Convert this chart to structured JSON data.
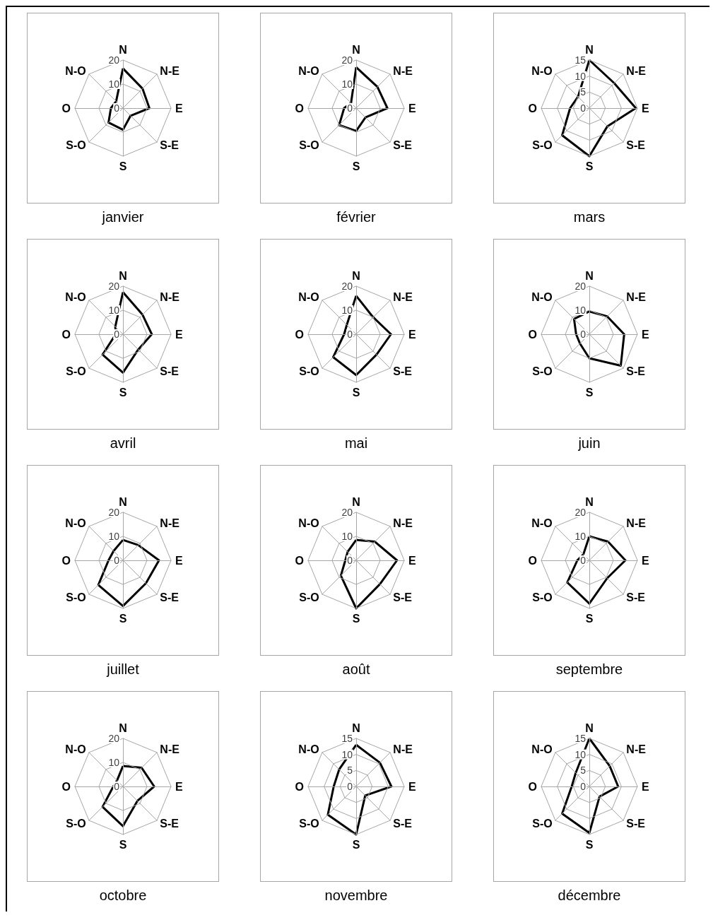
{
  "chart_data": [
    {
      "type": "radar",
      "title": "janvier",
      "categories": [
        "N",
        "N-E",
        "E",
        "S-E",
        "S",
        "S-O",
        "O",
        "N-O"
      ],
      "series": [
        {
          "color": "#000000",
          "values": [
            16.5,
            11.5,
            11,
            4.5,
            9,
            8.5,
            5,
            4
          ]
        }
      ],
      "ylim": [
        0,
        20
      ],
      "yticks": [
        0,
        10,
        20
      ],
      "grid": true,
      "marker": "none"
    },
    {
      "type": "radar",
      "title": "février",
      "categories": [
        "N",
        "N-E",
        "E",
        "S-E",
        "S",
        "S-O",
        "O",
        "N-O"
      ],
      "series": [
        {
          "color": "#000000",
          "values": [
            17,
            12.5,
            13,
            5.5,
            9.5,
            10,
            5,
            3
          ]
        }
      ],
      "ylim": [
        0,
        20
      ],
      "yticks": [
        0,
        10,
        20
      ],
      "grid": true,
      "marker": "none"
    },
    {
      "type": "radar",
      "title": "mars",
      "categories": [
        "N",
        "N-E",
        "E",
        "S-E",
        "S",
        "S-O",
        "O",
        "N-O"
      ],
      "series": [
        {
          "color": "#000000",
          "values": [
            15,
            11,
            14.5,
            8,
            15,
            12,
            6,
            5
          ]
        }
      ],
      "ylim": [
        0,
        15
      ],
      "yticks": [
        0,
        5,
        10,
        15
      ],
      "grid": true,
      "marker": "none"
    },
    {
      "type": "radar",
      "title": "avril",
      "categories": [
        "N",
        "N-E",
        "E",
        "S-E",
        "S",
        "S-O",
        "O",
        "N-O"
      ],
      "series": [
        {
          "color": "#000000",
          "values": [
            17.5,
            11.5,
            12,
            9,
            16,
            12,
            3,
            4.5
          ]
        }
      ],
      "ylim": [
        0,
        20
      ],
      "yticks": [
        0,
        10,
        20
      ],
      "grid": true,
      "marker": "none"
    },
    {
      "type": "radar",
      "title": "mai",
      "categories": [
        "N",
        "N-E",
        "E",
        "S-E",
        "S",
        "S-O",
        "O",
        "N-O"
      ],
      "series": [
        {
          "color": "#000000",
          "values": [
            16,
            10,
            14.5,
            12,
            17,
            13.5,
            5,
            5.5
          ]
        }
      ],
      "ylim": [
        0,
        20
      ],
      "yticks": [
        0,
        10,
        20
      ],
      "grid": true,
      "marker": "none"
    },
    {
      "type": "radar",
      "title": "juin",
      "categories": [
        "N",
        "N-E",
        "E",
        "S-E",
        "S",
        "S-O",
        "O",
        "N-O"
      ],
      "series": [
        {
          "color": "#000000",
          "values": [
            9.5,
            10.5,
            14.5,
            18.5,
            10,
            5.5,
            5.5,
            9
          ]
        }
      ],
      "ylim": [
        0,
        20
      ],
      "yticks": [
        0,
        10,
        20
      ],
      "grid": true,
      "marker": "none"
    },
    {
      "type": "radar",
      "title": "juillet",
      "categories": [
        "N",
        "N-E",
        "E",
        "S-E",
        "S",
        "S-O",
        "O",
        "N-O"
      ],
      "series": [
        {
          "color": "#000000",
          "values": [
            8.5,
            9,
            15,
            13.5,
            19,
            14.5,
            6,
            5.5
          ]
        }
      ],
      "ylim": [
        0,
        20
      ],
      "yticks": [
        0,
        10,
        20
      ],
      "grid": true,
      "marker": "none"
    },
    {
      "type": "radar",
      "title": "août",
      "categories": [
        "N",
        "N-E",
        "E",
        "S-E",
        "S",
        "S-O",
        "O",
        "N-O"
      ],
      "series": [
        {
          "color": "#000000",
          "values": [
            8.5,
            11,
            17,
            14,
            20,
            9,
            4.5,
            5
          ]
        }
      ],
      "ylim": [
        0,
        20
      ],
      "yticks": [
        0,
        10,
        20
      ],
      "grid": true,
      "marker": "none"
    },
    {
      "type": "radar",
      "title": "septembre",
      "categories": [
        "N",
        "N-E",
        "E",
        "S-E",
        "S",
        "S-O",
        "O",
        "N-O"
      ],
      "series": [
        {
          "color": "#000000",
          "values": [
            10,
            11,
            15,
            10.5,
            18,
            13,
            5,
            3.5
          ]
        }
      ],
      "ylim": [
        0,
        20
      ],
      "yticks": [
        0,
        10,
        20
      ],
      "grid": true,
      "marker": "none"
    },
    {
      "type": "radar",
      "title": "octobre",
      "categories": [
        "N",
        "N-E",
        "E",
        "S-E",
        "S",
        "S-O",
        "O",
        "N-O"
      ],
      "series": [
        {
          "color": "#000000",
          "values": [
            8.5,
            11,
            13,
            8.5,
            16.5,
            12,
            4,
            3.5
          ]
        }
      ],
      "ylim": [
        0,
        20
      ],
      "yticks": [
        0,
        10,
        20
      ],
      "grid": true,
      "marker": "none"
    },
    {
      "type": "radar",
      "title": "novembre",
      "categories": [
        "N",
        "N-E",
        "E",
        "S-E",
        "S",
        "S-O",
        "O",
        "N-O"
      ],
      "series": [
        {
          "color": "#000000",
          "values": [
            13,
            10.5,
            11,
            4,
            15,
            12.5,
            7,
            7.5
          ]
        }
      ],
      "ylim": [
        0,
        15
      ],
      "yticks": [
        0,
        5,
        10,
        15
      ],
      "grid": true,
      "marker": "none"
    },
    {
      "type": "radar",
      "title": "décembre",
      "categories": [
        "N",
        "N-E",
        "E",
        "S-E",
        "S",
        "S-O",
        "O",
        "N-O"
      ],
      "series": [
        {
          "color": "#000000",
          "values": [
            15,
            9,
            9,
            4.5,
            14.5,
            12,
            5.5,
            6
          ]
        }
      ],
      "ylim": [
        0,
        15
      ],
      "yticks": [
        0,
        5,
        10,
        15
      ],
      "grid": true,
      "marker": "none"
    }
  ]
}
